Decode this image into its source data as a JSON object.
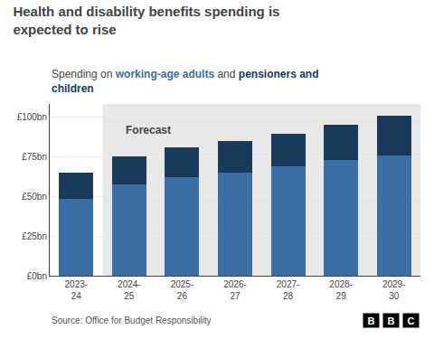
{
  "chart_data": {
    "type": "bar",
    "stacked": true,
    "title": "Health and disability benefits spending is\nexpected to rise",
    "subtitle": "Spending on working-age adults and pensioners and\nchildren",
    "categories": [
      "2023-\n24",
      "2024-\n25",
      "2025-\n26",
      "2026-\n27",
      "2027-\n28",
      "2028-\n29",
      "2029-\n30"
    ],
    "series": [
      {
        "name": "working-age adults",
        "color": "#3a6ea5",
        "values": [
          48.5,
          57.5,
          62.0,
          65.0,
          68.5,
          72.5,
          75.7
        ]
      },
      {
        "name": "pensioners and\nchildren",
        "color": "#1a3a5c",
        "values": [
          16.2,
          17.5,
          18.5,
          19.5,
          21.0,
          22.5,
          25.0
        ]
      }
    ],
    "ylim": [
      0,
      108
    ],
    "yticks": [
      {
        "value": 0,
        "label": "£0bn"
      },
      {
        "value": 25,
        "label": "£25bn"
      },
      {
        "value": 50,
        "label": "£50bn"
      },
      {
        "value": 75,
        "label": "£75bn"
      },
      {
        "value": 100,
        "label": "£100bn"
      }
    ],
    "grid": true,
    "annotations": [
      {
        "text": "Forecast",
        "category": "2024-\n25",
        "color": "#e8e8e8"
      }
    ],
    "source": "Source: Office for Budget Responsibility",
    "logo": "BBC"
  }
}
